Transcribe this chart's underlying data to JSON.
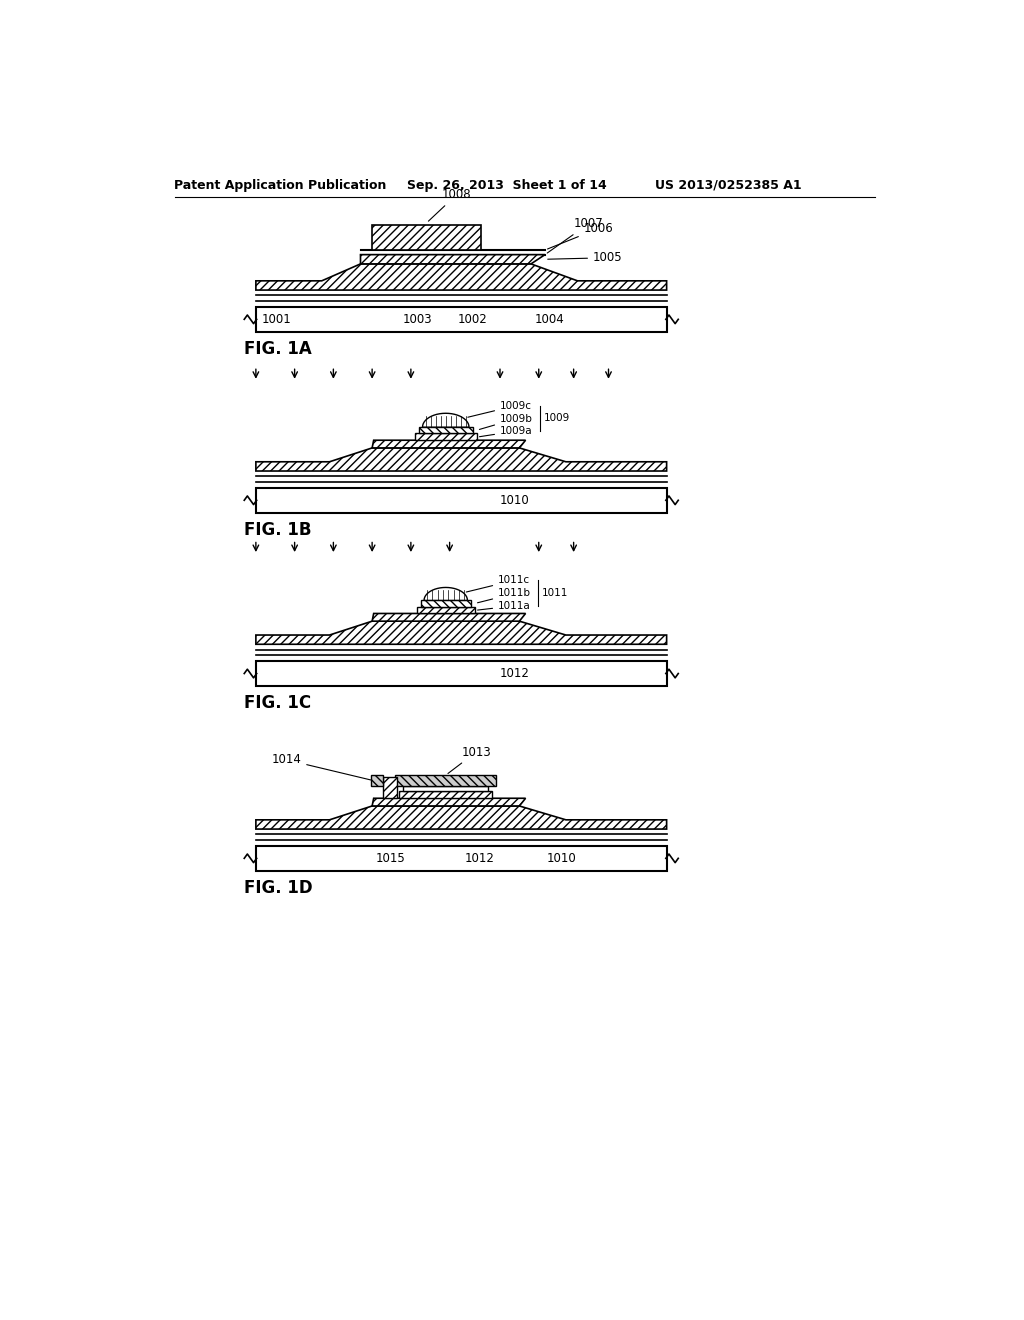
{
  "bg_color": "#ffffff",
  "text_color": "#000000",
  "header_left": "Patent Application Publication",
  "header_center": "Sep. 26, 2013  Sheet 1 of 14",
  "header_right": "US 2013/0252385 A1",
  "fig_labels": [
    "FIG. 1A",
    "FIG. 1B",
    "FIG. 1C",
    "FIG. 1D"
  ],
  "line_color": "#000000",
  "hatch_color": "#000000"
}
